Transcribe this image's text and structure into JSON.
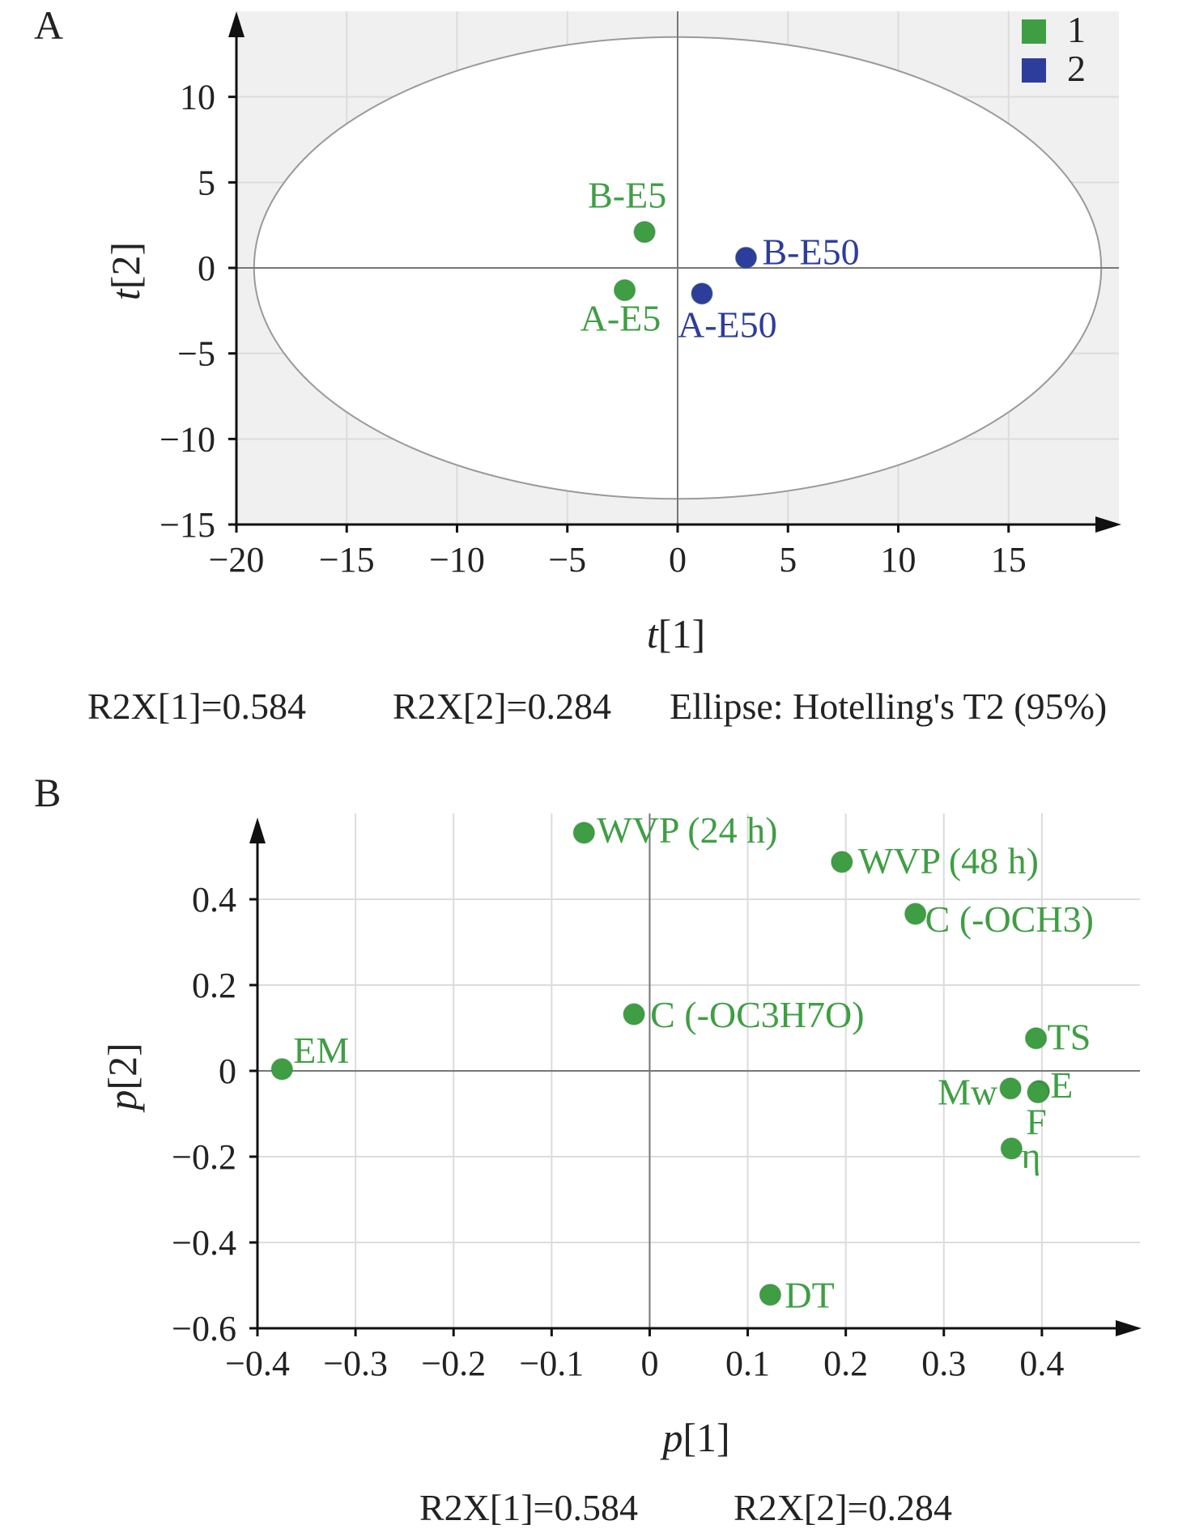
{
  "colors": {
    "group1": "#3f9e44",
    "group2": "#2d3d9c",
    "plot_bg": "#f0f0f0",
    "grid": "#dcdcdc",
    "axis": "#111111",
    "ellipse": "#9a9a9a"
  },
  "chart_data": [
    {
      "panel": "A",
      "type": "scatter",
      "xlabel_prefix": "t",
      "xlabel_suffix": "[1]",
      "ylabel_prefix": "t",
      "ylabel_suffix": "[2]",
      "xlim": [
        -20,
        20
      ],
      "ylim": [
        -15,
        15
      ],
      "xticks": [
        -20,
        -15,
        -10,
        -5,
        0,
        5,
        10,
        15
      ],
      "xtick_labels": [
        "−20",
        "−15",
        "−10",
        "−5",
        "0",
        "5",
        "10",
        "15"
      ],
      "yticks": [
        -15,
        -10,
        -5,
        0,
        5,
        10
      ],
      "ytick_labels": [
        "−15",
        "−10",
        "−5",
        "0",
        "5",
        "10"
      ],
      "grid": true,
      "plot_background": "light gray",
      "legend": {
        "placement": "top-right",
        "entries": [
          {
            "label": "1",
            "color": "#3f9e44"
          },
          {
            "label": "2",
            "color": "#2d3d9c"
          }
        ]
      },
      "ellipse": {
        "label": "Hotelling's T2 (95%)",
        "center": [
          0,
          0
        ],
        "rx": 19.2,
        "ry": 13.5
      },
      "series": [
        {
          "name": "1",
          "color": "#3f9e44",
          "points": [
            {
              "label": "B-E5",
              "x": -1.5,
              "y": 2.1
            },
            {
              "label": "A-E5",
              "x": -2.4,
              "y": -1.3
            }
          ]
        },
        {
          "name": "2",
          "color": "#2d3d9c",
          "points": [
            {
              "label": "B-E50",
              "x": 3.1,
              "y": 0.6
            },
            {
              "label": "A-E50",
              "x": 1.1,
              "y": -1.5
            }
          ]
        }
      ],
      "footer": [
        "R2X[1]=0.584",
        "R2X[2]=0.284",
        "Ellipse: Hotelling's T2 (95%)"
      ]
    },
    {
      "panel": "B",
      "type": "scatter",
      "xlabel_prefix": "p",
      "xlabel_suffix": "[1]",
      "ylabel_prefix": "p",
      "ylabel_suffix": "[2]",
      "xlim": [
        -0.4,
        0.5
      ],
      "ylim": [
        -0.6,
        0.6
      ],
      "xticks": [
        -0.4,
        -0.3,
        -0.2,
        -0.1,
        0,
        0.1,
        0.2,
        0.3,
        0.4
      ],
      "xtick_labels": [
        "−0.4",
        "−0.3",
        "−0.2",
        "−0.1",
        "0",
        "0.1",
        "0.2",
        "0.3",
        "0.4"
      ],
      "yticks": [
        -0.6,
        -0.4,
        -0.2,
        0,
        0.2,
        0.4
      ],
      "ytick_labels": [
        "−0.6",
        "−0.4",
        "−0.2",
        "0",
        "0.2",
        "0.4"
      ],
      "grid": true,
      "plot_background": "white",
      "series": [
        {
          "color": "#3f9e44",
          "points": [
            {
              "label": "WVP (24 h)",
              "x": -0.067,
              "y": 0.555
            },
            {
              "label": "WVP (48 h)",
              "x": 0.196,
              "y": 0.487
            },
            {
              "label": "C (-OCH3)",
              "x": 0.271,
              "y": 0.366
            },
            {
              "label": "C (-OC3H7O)",
              "x": -0.016,
              "y": 0.132
            },
            {
              "label": "EM",
              "x": -0.375,
              "y": 0.004
            },
            {
              "label": "TS",
              "x": 0.394,
              "y": 0.076
            },
            {
              "label": "Mw",
              "x": 0.368,
              "y": -0.041
            },
            {
              "label": "E",
              "x": 0.397,
              "y": -0.047
            },
            {
              "label": "F",
              "x": 0.396,
              "y": -0.05
            },
            {
              "label": "η",
              "x": 0.369,
              "y": -0.181
            },
            {
              "label": "DT",
              "x": 0.123,
              "y": -0.522
            }
          ]
        }
      ],
      "footer": [
        "R2X[1]=0.584",
        "R2X[2]=0.284"
      ]
    }
  ]
}
